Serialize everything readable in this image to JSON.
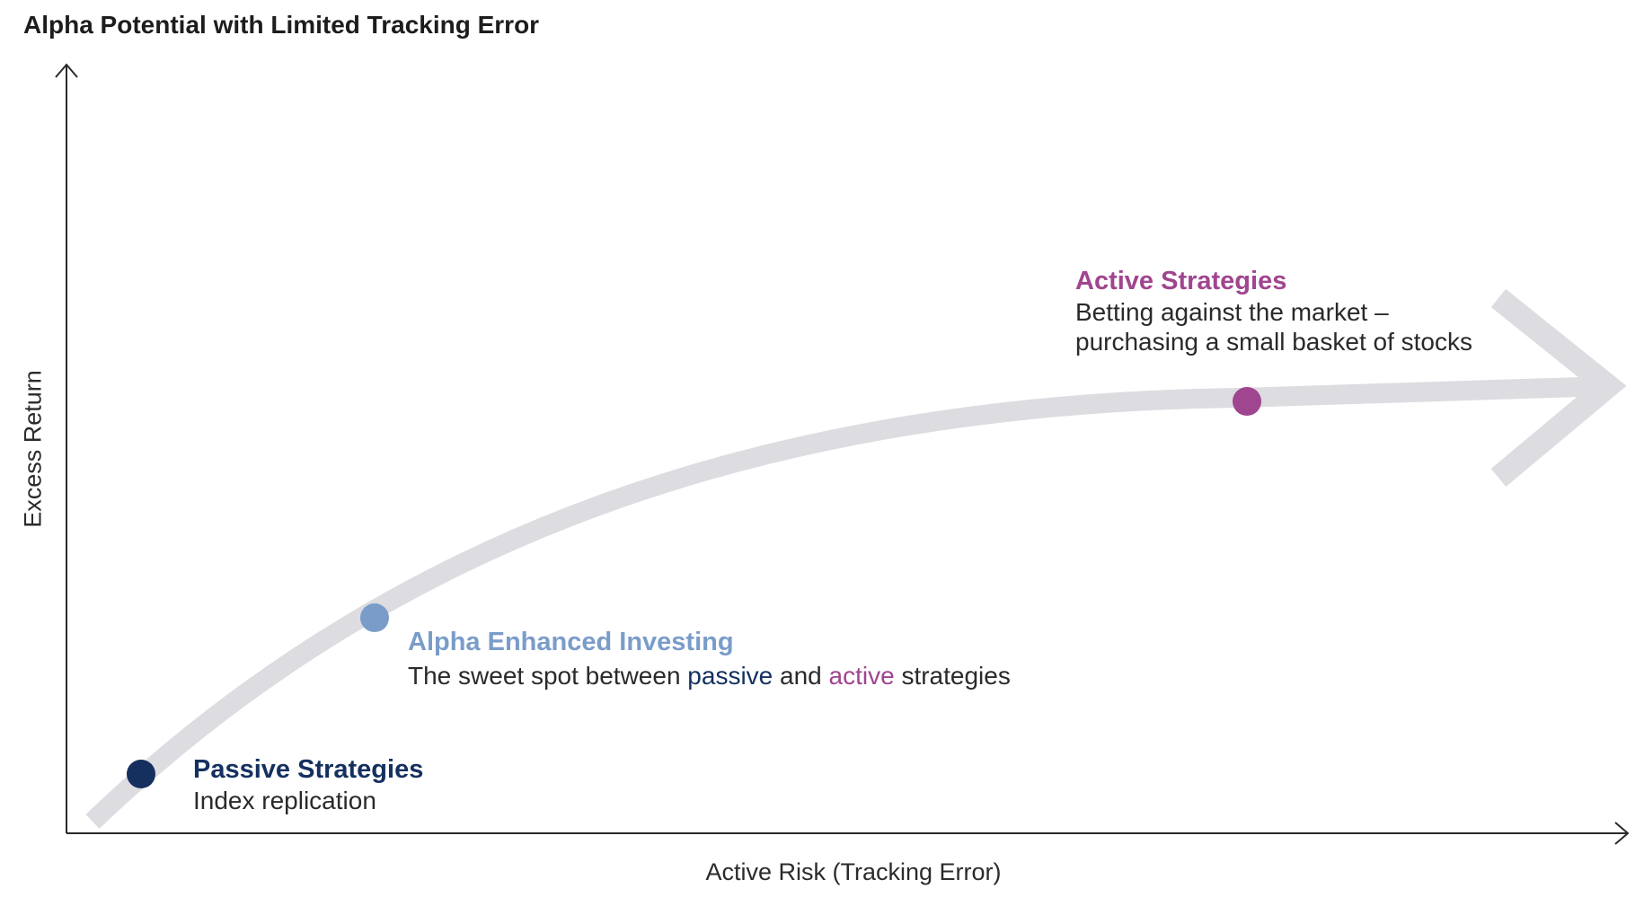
{
  "title": "Alpha Potential with Limited Tracking Error",
  "axes": {
    "x_label": "Active Risk (Tracking Error)",
    "y_label": "Excess Return"
  },
  "colors": {
    "curve": "#dcdce1",
    "axis": "#2a2a2a",
    "passive": "#15305f",
    "enhanced": "#7a9cc9",
    "active": "#a0458f"
  },
  "points": [
    {
      "id": "passive",
      "heading": "Passive Strategies",
      "description": "Index replication"
    },
    {
      "id": "enhanced",
      "heading": "Alpha Enhanced Investing",
      "description_parts": [
        "The sweet spot between ",
        "passive",
        " and ",
        "active",
        " strategies"
      ]
    },
    {
      "id": "active",
      "heading": "Active Strategies",
      "description_lines": [
        "Betting against the market –",
        "purchasing a small basket of stocks"
      ]
    }
  ]
}
